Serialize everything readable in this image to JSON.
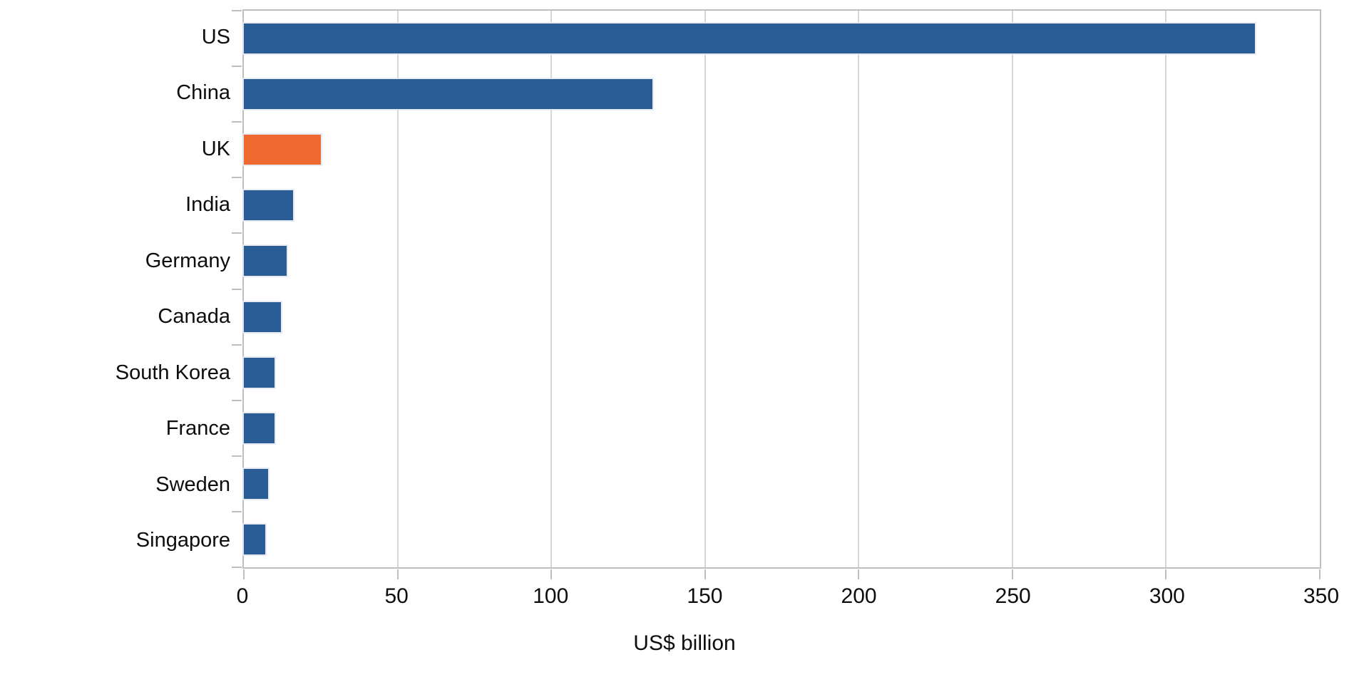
{
  "chart_data": {
    "type": "bar",
    "orientation": "horizontal",
    "title": "",
    "xlabel": "US$ billion",
    "ylabel": "",
    "categories": [
      "US",
      "China",
      "UK",
      "India",
      "Germany",
      "Canada",
      "South Korea",
      "France",
      "Sweden",
      "Singapore"
    ],
    "values": [
      329,
      133,
      25,
      16,
      14,
      12,
      10,
      10,
      8,
      7
    ],
    "xlim": [
      0,
      350
    ],
    "xticks": [
      0,
      50,
      100,
      150,
      200,
      250,
      300,
      350
    ],
    "grid": "vertical-gridlines-on",
    "legend": "none",
    "highlight_category": "UK",
    "colors": {
      "bar_default": "#2a5c95",
      "bar_highlight": "#ee6a30",
      "gridline": "#d6d6d6",
      "axis_line": "#bfbfbf",
      "text": "#0d0d0d",
      "background": "#ffffff"
    }
  }
}
